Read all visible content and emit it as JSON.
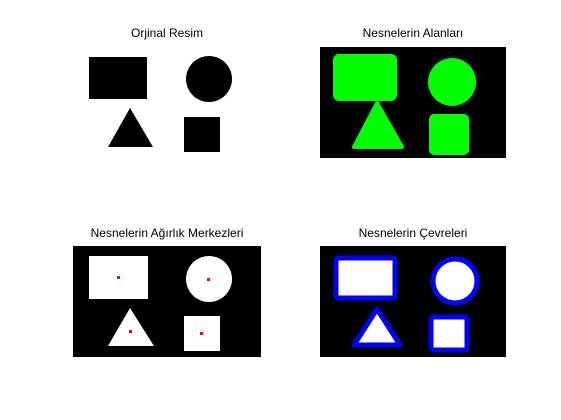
{
  "figure": {
    "panels": [
      {
        "title": "Orjinal Resim"
      },
      {
        "title": "Nesnelerin Alanları"
      },
      {
        "title": "Nesnelerin Ağırlık Merkezleri"
      },
      {
        "title": "Nesnelerin Çevreleri"
      }
    ]
  },
  "colors": {
    "background_white": "#ffffff",
    "background_black": "#000000",
    "area_fill": "#00ff00",
    "centroid": "#ff0000",
    "perimeter": "#0000ff"
  }
}
